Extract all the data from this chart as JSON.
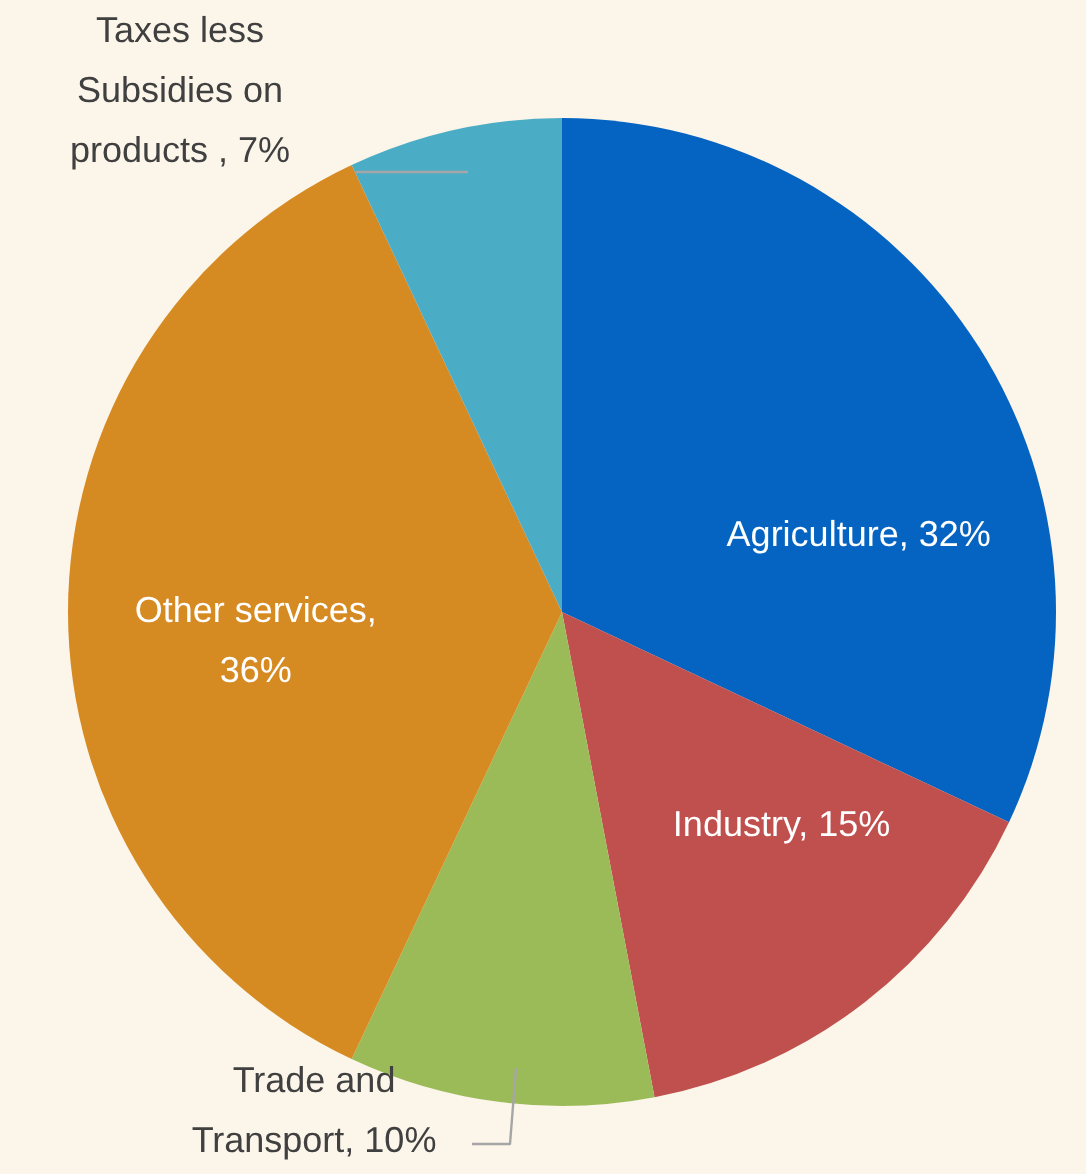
{
  "chart_data": {
    "type": "pie",
    "categories": [
      "Agriculture",
      "Industry",
      "Trade and Transport",
      "Other services",
      "Taxes less Subsidies on products"
    ],
    "values": [
      32,
      15,
      10,
      36,
      7
    ],
    "value_labels": [
      ", 32%",
      ", 15%",
      ", 10%",
      ", 36%",
      " , 7%"
    ],
    "colors": [
      "#0563c1",
      "#c0504d",
      "#9bbb59",
      "#d68a22",
      "#4bacc6"
    ],
    "legend": false
  }
}
